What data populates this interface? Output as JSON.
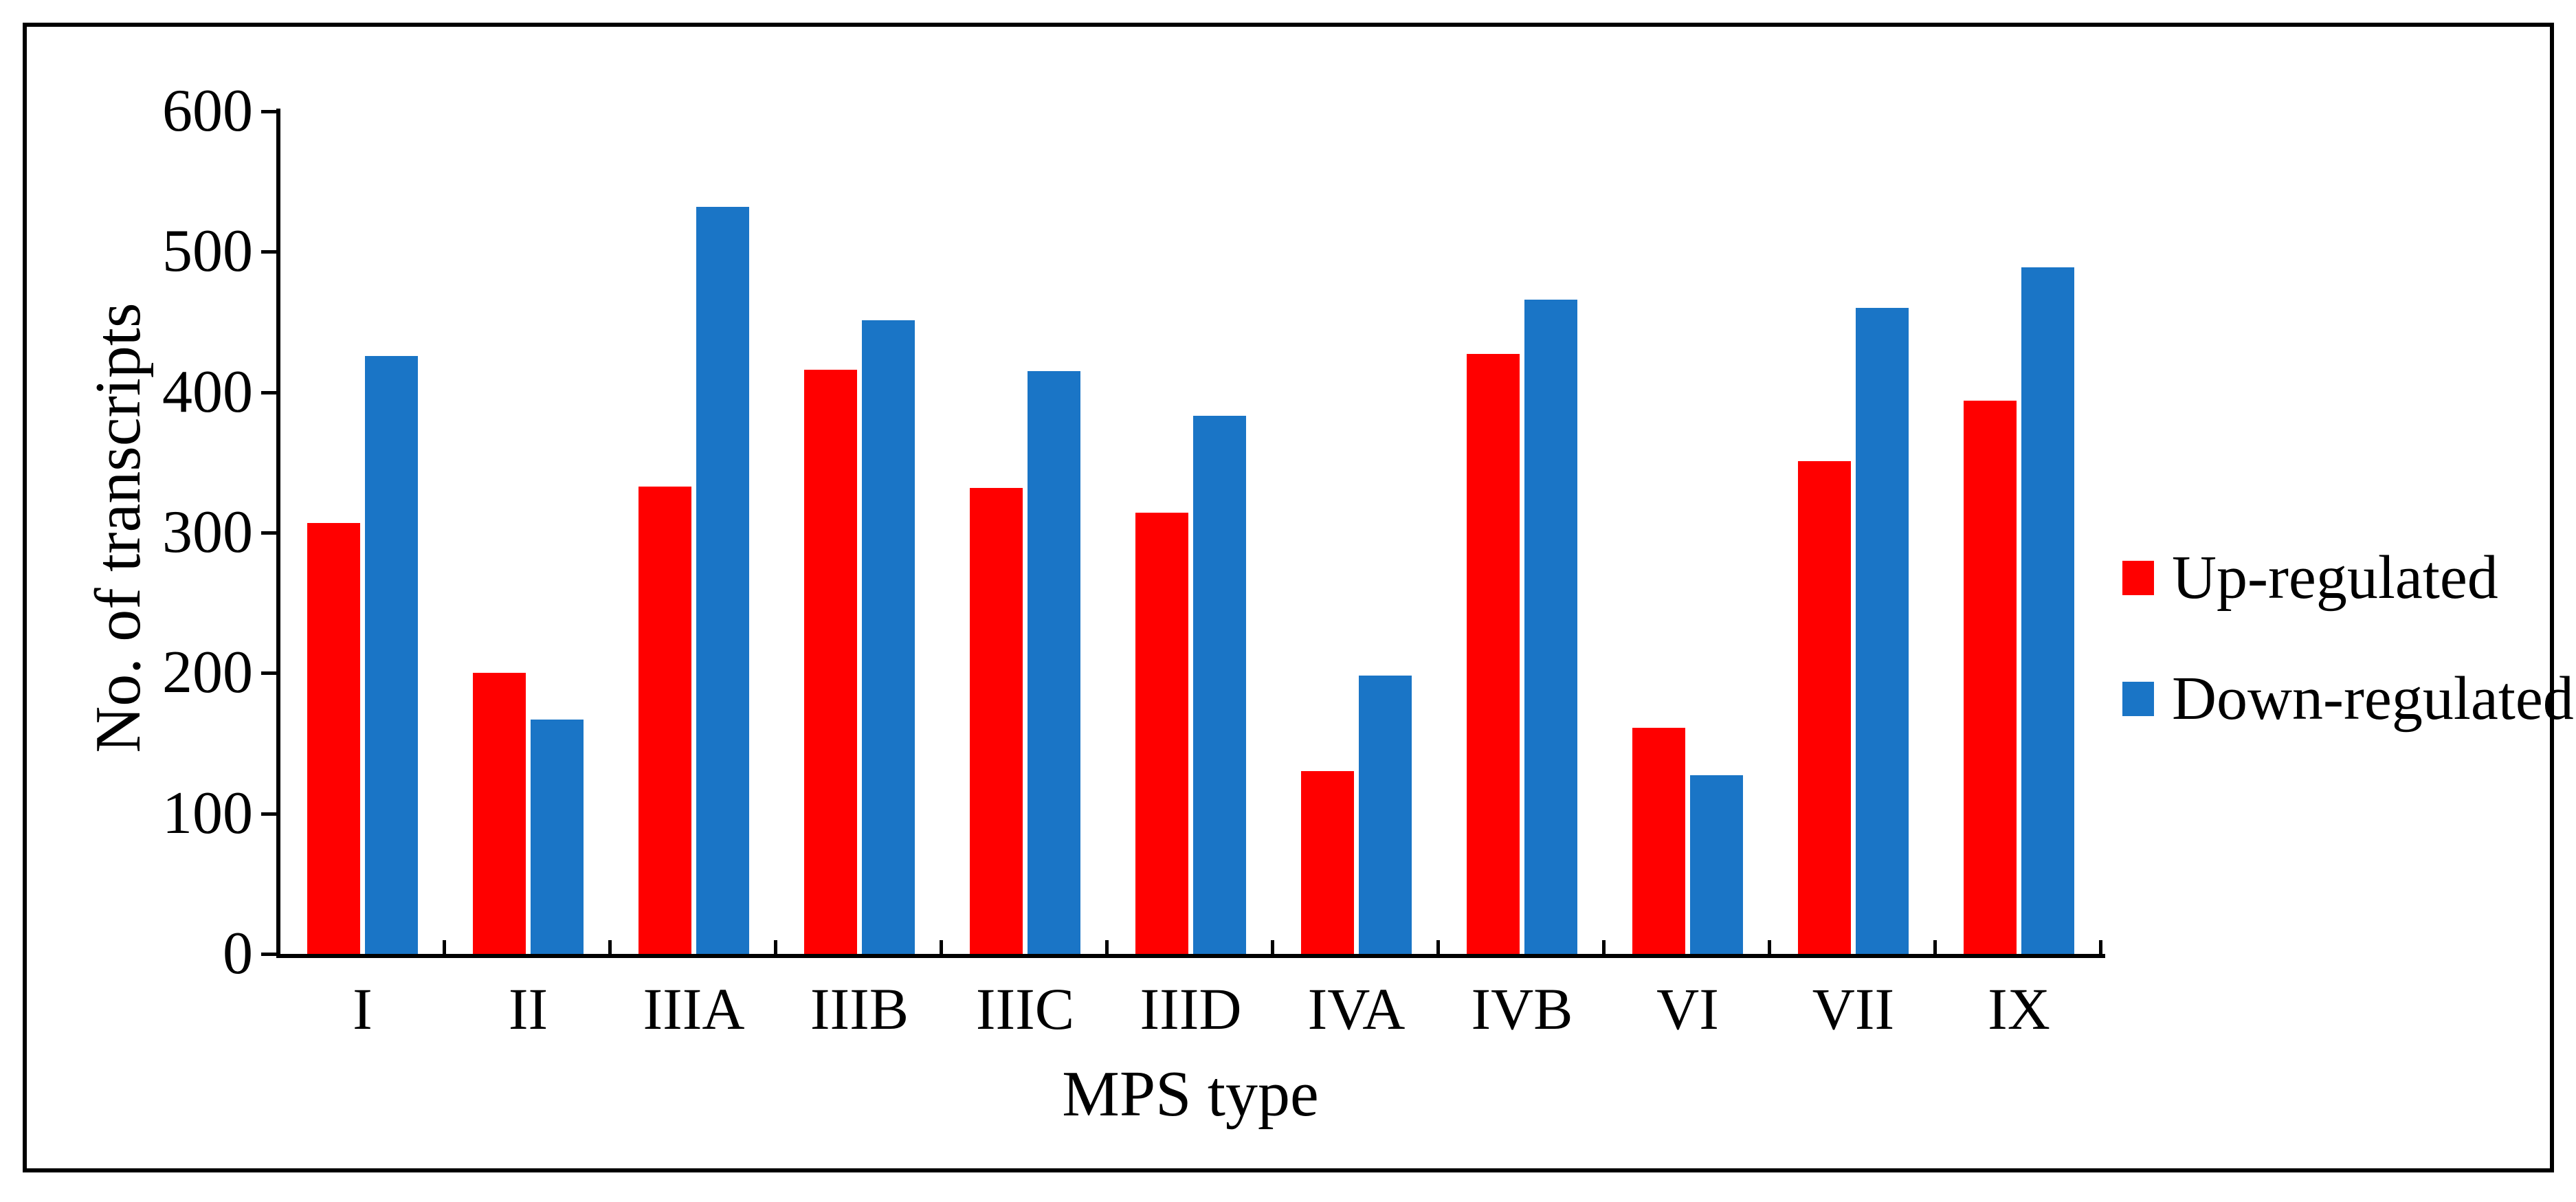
{
  "figure": {
    "background_color": "#ffffff",
    "frame_color": "#000000"
  },
  "chart_data": {
    "type": "bar",
    "title": "",
    "xlabel": "MPS type",
    "ylabel": "No. of transcripts",
    "categories": [
      "I",
      "II",
      "IIIA",
      "IIIB",
      "IIIC",
      "IIID",
      "IVA",
      "IVB",
      "VI",
      "VII",
      "IX"
    ],
    "series": [
      {
        "name": "Up-regulated",
        "color": "#FF0000",
        "values": [
          307,
          200,
          333,
          416,
          332,
          314,
          130,
          427,
          161,
          351,
          394
        ]
      },
      {
        "name": "Down-regulated",
        "color": "#1A75C6",
        "values": [
          426,
          167,
          532,
          451,
          415,
          383,
          198,
          466,
          127,
          460,
          489
        ]
      }
    ],
    "ylim": [
      0,
      600
    ],
    "yticks": [
      0,
      100,
      200,
      300,
      400,
      500,
      600
    ],
    "grid": false,
    "legend_position": "right-middle"
  },
  "legend": {
    "items": [
      {
        "label": "Up-regulated",
        "color": "#FF0000"
      },
      {
        "label": "Down-regulated",
        "color": "#1A75C6"
      }
    ]
  }
}
